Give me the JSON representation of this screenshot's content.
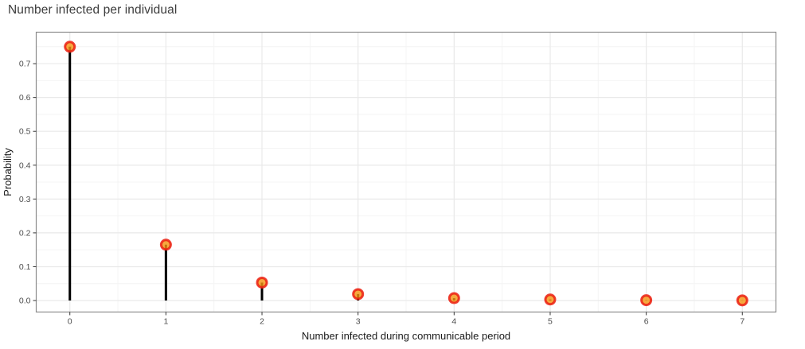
{
  "page": {
    "background": "#ffffff"
  },
  "header": {
    "title": "Number infected per individual"
  },
  "chart_data": {
    "type": "scatter",
    "style": "lollipop-stem",
    "title": "Number infected per individual",
    "xlabel": "Number infected during communicable period",
    "ylabel": "Probability",
    "x": [
      0,
      1,
      2,
      3,
      4,
      5,
      6,
      7
    ],
    "y": [
      0.75,
      0.165,
      0.053,
      0.019,
      0.007,
      0.003,
      0.001,
      0.0005
    ],
    "x_tick_labels": [
      "0",
      "1",
      "2",
      "3",
      "4",
      "5",
      "6",
      "7"
    ],
    "y_tick_labels": [
      "0.0",
      "0.1",
      "0.2",
      "0.3",
      "0.4",
      "0.5",
      "0.6",
      "0.7"
    ],
    "xlim": [
      -0.35,
      7.35
    ],
    "ylim": [
      -0.034,
      0.793
    ],
    "grid": {
      "major": true,
      "minor": true
    },
    "legend": "none",
    "colors": {
      "stem": "#000000",
      "point_fill": "#f59410",
      "point_fill_opacity": 0.8,
      "point_stroke": "#eb2114",
      "point_stroke_opacity": 0.87,
      "grid_major": "#e9e9e9",
      "grid_minor": "#f4f4f4",
      "panel_border": "#8c8c8c",
      "panel_bg": "#ffffff",
      "tick_color": "#333333",
      "tick_label_color": "#4d4d4d",
      "axis_title_color": "#1a1a1a",
      "title_color": "#3c3c3c"
    }
  }
}
